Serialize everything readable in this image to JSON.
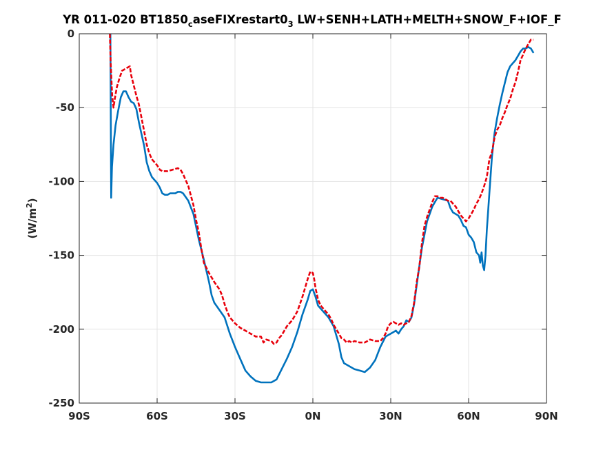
{
  "chart_data": {
    "type": "line",
    "title": {
      "prefix": "YR 011-020 BT1850",
      "sub1": "c",
      "mid": "aseFIXrestart0",
      "sub2": "3",
      "suffix": " LW+SENH+LATH+MELTH+SNOW_F+IOF_F"
    },
    "ylabel": {
      "main": "(W/m",
      "sup": "2",
      "close": ")"
    },
    "xlabel": "",
    "xlim": [
      -90,
      90
    ],
    "ylim": [
      -250,
      0
    ],
    "x_ticks": [
      {
        "value": -90,
        "label": "90S"
      },
      {
        "value": -60,
        "label": "60S"
      },
      {
        "value": -30,
        "label": "30S"
      },
      {
        "value": 0,
        "label": "0N"
      },
      {
        "value": 30,
        "label": "30N"
      },
      {
        "value": 60,
        "label": "60N"
      },
      {
        "value": 90,
        "label": "90N"
      }
    ],
    "y_ticks": [
      {
        "value": 0,
        "label": "0"
      },
      {
        "value": -50,
        "label": "-50"
      },
      {
        "value": -100,
        "label": "-100"
      },
      {
        "value": -150,
        "label": "-150"
      },
      {
        "value": -200,
        "label": "-200"
      },
      {
        "value": -250,
        "label": "-250"
      }
    ],
    "grid": true,
    "series": [
      {
        "color": "#0072BD",
        "style": "solid",
        "points": [
          [
            -78,
            0
          ],
          [
            -77.9,
            -40
          ],
          [
            -77.7,
            -111
          ],
          [
            -77.4,
            -90
          ],
          [
            -76.8,
            -75
          ],
          [
            -76,
            -62
          ],
          [
            -75,
            -52
          ],
          [
            -74,
            -43
          ],
          [
            -73,
            -39
          ],
          [
            -72,
            -39
          ],
          [
            -71,
            -43
          ],
          [
            -70,
            -46
          ],
          [
            -69,
            -47
          ],
          [
            -68,
            -51
          ],
          [
            -67,
            -60
          ],
          [
            -66,
            -68
          ],
          [
            -65,
            -76
          ],
          [
            -64,
            -87
          ],
          [
            -63,
            -93
          ],
          [
            -62,
            -97
          ],
          [
            -60,
            -101
          ],
          [
            -59,
            -104
          ],
          [
            -58,
            -108
          ],
          [
            -57,
            -109
          ],
          [
            -56,
            -109
          ],
          [
            -55,
            -108
          ],
          [
            -54,
            -108
          ],
          [
            -53,
            -108
          ],
          [
            -52,
            -107
          ],
          [
            -51,
            -107
          ],
          [
            -50,
            -108
          ],
          [
            -48,
            -113
          ],
          [
            -46,
            -122
          ],
          [
            -44,
            -139
          ],
          [
            -42,
            -153
          ],
          [
            -40,
            -168
          ],
          [
            -39,
            -177
          ],
          [
            -38,
            -182
          ],
          [
            -36,
            -187
          ],
          [
            -34,
            -192
          ],
          [
            -32,
            -203
          ],
          [
            -30,
            -212
          ],
          [
            -28,
            -220
          ],
          [
            -26,
            -228
          ],
          [
            -24,
            -232
          ],
          [
            -22,
            -235
          ],
          [
            -20,
            -236
          ],
          [
            -18,
            -236
          ],
          [
            -16,
            -236
          ],
          [
            -14,
            -234
          ],
          [
            -12,
            -227
          ],
          [
            -10,
            -220
          ],
          [
            -8,
            -212
          ],
          [
            -6,
            -202
          ],
          [
            -4,
            -190
          ],
          [
            -2,
            -180
          ],
          [
            -1,
            -174
          ],
          [
            0,
            -173
          ],
          [
            1,
            -178
          ],
          [
            2,
            -184
          ],
          [
            4,
            -188
          ],
          [
            6,
            -192
          ],
          [
            8,
            -198
          ],
          [
            9,
            -204
          ],
          [
            10,
            -210
          ],
          [
            11,
            -219
          ],
          [
            12,
            -223
          ],
          [
            14,
            -225
          ],
          [
            16,
            -227
          ],
          [
            18,
            -228
          ],
          [
            20,
            -229
          ],
          [
            22,
            -226
          ],
          [
            24,
            -221
          ],
          [
            26,
            -212
          ],
          [
            28,
            -205
          ],
          [
            30,
            -203
          ],
          [
            32,
            -201
          ],
          [
            33,
            -203
          ],
          [
            34,
            -200
          ],
          [
            35,
            -198
          ],
          [
            36,
            -194
          ],
          [
            37,
            -195
          ],
          [
            38,
            -192
          ],
          [
            39,
            -183
          ],
          [
            40,
            -170
          ],
          [
            42,
            -145
          ],
          [
            44,
            -127
          ],
          [
            46,
            -117
          ],
          [
            48,
            -111
          ],
          [
            50,
            -112
          ],
          [
            52,
            -113
          ],
          [
            53,
            -118
          ],
          [
            54,
            -121
          ],
          [
            56,
            -123
          ],
          [
            57,
            -126
          ],
          [
            58,
            -130
          ],
          [
            59,
            -131
          ],
          [
            60,
            -136
          ],
          [
            61,
            -138
          ],
          [
            62,
            -141
          ],
          [
            63,
            -148
          ],
          [
            64,
            -150
          ],
          [
            64.5,
            -155
          ],
          [
            65,
            -148
          ],
          [
            65.5,
            -157
          ],
          [
            66,
            -160
          ],
          [
            66.5,
            -150
          ],
          [
            67,
            -133
          ],
          [
            68,
            -108
          ],
          [
            69,
            -83
          ],
          [
            70,
            -67
          ],
          [
            71,
            -57
          ],
          [
            72,
            -48
          ],
          [
            73,
            -40
          ],
          [
            74,
            -33
          ],
          [
            75,
            -26
          ],
          [
            76,
            -22
          ],
          [
            77,
            -20
          ],
          [
            78,
            -18
          ],
          [
            79,
            -15
          ],
          [
            80,
            -12
          ],
          [
            81,
            -10
          ],
          [
            82,
            -10
          ],
          [
            83,
            -9
          ],
          [
            84,
            -10
          ],
          [
            85,
            -13
          ]
        ]
      },
      {
        "color": "#E8000B",
        "style": "dashed",
        "points": [
          [
            -78.2,
            0
          ],
          [
            -77.9,
            -20
          ],
          [
            -77.3,
            -42
          ],
          [
            -76.8,
            -50
          ],
          [
            -76.3,
            -44
          ],
          [
            -75.5,
            -36
          ],
          [
            -74.5,
            -30
          ],
          [
            -73.5,
            -25
          ],
          [
            -72.5,
            -24
          ],
          [
            -71.5,
            -23
          ],
          [
            -70.5,
            -22
          ],
          [
            -70,
            -28
          ],
          [
            -69,
            -35
          ],
          [
            -68,
            -42
          ],
          [
            -67,
            -48
          ],
          [
            -66,
            -57
          ],
          [
            -65,
            -66
          ],
          [
            -64,
            -75
          ],
          [
            -63,
            -81
          ],
          [
            -62,
            -85
          ],
          [
            -61,
            -87
          ],
          [
            -60,
            -89
          ],
          [
            -59,
            -92
          ],
          [
            -58,
            -93
          ],
          [
            -56,
            -93
          ],
          [
            -54,
            -92
          ],
          [
            -52,
            -91
          ],
          [
            -51,
            -92
          ],
          [
            -50,
            -95
          ],
          [
            -49,
            -99
          ],
          [
            -48,
            -103
          ],
          [
            -46,
            -116
          ],
          [
            -45,
            -126
          ],
          [
            -44,
            -134
          ],
          [
            -43,
            -145
          ],
          [
            -42,
            -155
          ],
          [
            -40,
            -162
          ],
          [
            -38,
            -168
          ],
          [
            -36,
            -173
          ],
          [
            -35,
            -177
          ],
          [
            -34,
            -183
          ],
          [
            -33,
            -188
          ],
          [
            -32,
            -192
          ],
          [
            -30,
            -196
          ],
          [
            -28,
            -199
          ],
          [
            -26,
            -201
          ],
          [
            -24,
            -203
          ],
          [
            -22,
            -205
          ],
          [
            -20,
            -205
          ],
          [
            -19,
            -209
          ],
          [
            -18,
            -207
          ],
          [
            -16,
            -208
          ],
          [
            -15,
            -210
          ],
          [
            -14,
            -209
          ],
          [
            -13,
            -206
          ],
          [
            -12,
            -204
          ],
          [
            -10,
            -198
          ],
          [
            -8,
            -194
          ],
          [
            -6,
            -188
          ],
          [
            -5,
            -183
          ],
          [
            -4,
            -178
          ],
          [
            -3,
            -172
          ],
          [
            -2,
            -166
          ],
          [
            -1,
            -161
          ],
          [
            0,
            -162
          ],
          [
            0.5,
            -166
          ],
          [
            1,
            -172
          ],
          [
            2,
            -180
          ],
          [
            3,
            -184
          ],
          [
            4,
            -186
          ],
          [
            5,
            -188
          ],
          [
            6,
            -190
          ],
          [
            7,
            -193
          ],
          [
            8,
            -197
          ],
          [
            9,
            -200
          ],
          [
            10,
            -203
          ],
          [
            11,
            -206
          ],
          [
            12,
            -207
          ],
          [
            13,
            -209
          ],
          [
            14,
            -208
          ],
          [
            15,
            -209
          ],
          [
            16,
            -208
          ],
          [
            18,
            -209
          ],
          [
            20,
            -209
          ],
          [
            22,
            -207
          ],
          [
            24,
            -208
          ],
          [
            26,
            -208
          ],
          [
            27,
            -206
          ],
          [
            28,
            -203
          ],
          [
            29,
            -198
          ],
          [
            30,
            -196
          ],
          [
            31,
            -195
          ],
          [
            32,
            -196
          ],
          [
            33,
            -197
          ],
          [
            34,
            -196
          ],
          [
            35,
            -197
          ],
          [
            36,
            -196
          ],
          [
            37,
            -195
          ],
          [
            38,
            -191
          ],
          [
            39,
            -182
          ],
          [
            40,
            -168
          ],
          [
            41,
            -158
          ],
          [
            42,
            -142
          ],
          [
            43,
            -130
          ],
          [
            44,
            -124
          ],
          [
            46,
            -114
          ],
          [
            47,
            -110
          ],
          [
            48,
            -110
          ],
          [
            49,
            -111
          ],
          [
            50,
            -111
          ],
          [
            51,
            -112
          ],
          [
            52,
            -113
          ],
          [
            53,
            -113
          ],
          [
            54,
            -115
          ],
          [
            55,
            -117
          ],
          [
            56,
            -120
          ],
          [
            57,
            -123
          ],
          [
            58,
            -125
          ],
          [
            59,
            -127
          ],
          [
            60,
            -125
          ],
          [
            61,
            -122
          ],
          [
            62,
            -119
          ],
          [
            63,
            -115
          ],
          [
            64,
            -112
          ],
          [
            65,
            -108
          ],
          [
            66,
            -103
          ],
          [
            67,
            -97
          ],
          [
            68,
            -85
          ],
          [
            69,
            -80
          ],
          [
            70,
            -70
          ],
          [
            71,
            -65
          ],
          [
            72,
            -62
          ],
          [
            73,
            -57
          ],
          [
            74,
            -53
          ],
          [
            75,
            -48
          ],
          [
            76,
            -44
          ],
          [
            77,
            -38
          ],
          [
            78,
            -33
          ],
          [
            79,
            -26
          ],
          [
            80,
            -18
          ],
          [
            81,
            -14
          ],
          [
            82,
            -10
          ],
          [
            83,
            -7
          ],
          [
            84,
            -4
          ],
          [
            85,
            -4
          ]
        ]
      }
    ]
  }
}
